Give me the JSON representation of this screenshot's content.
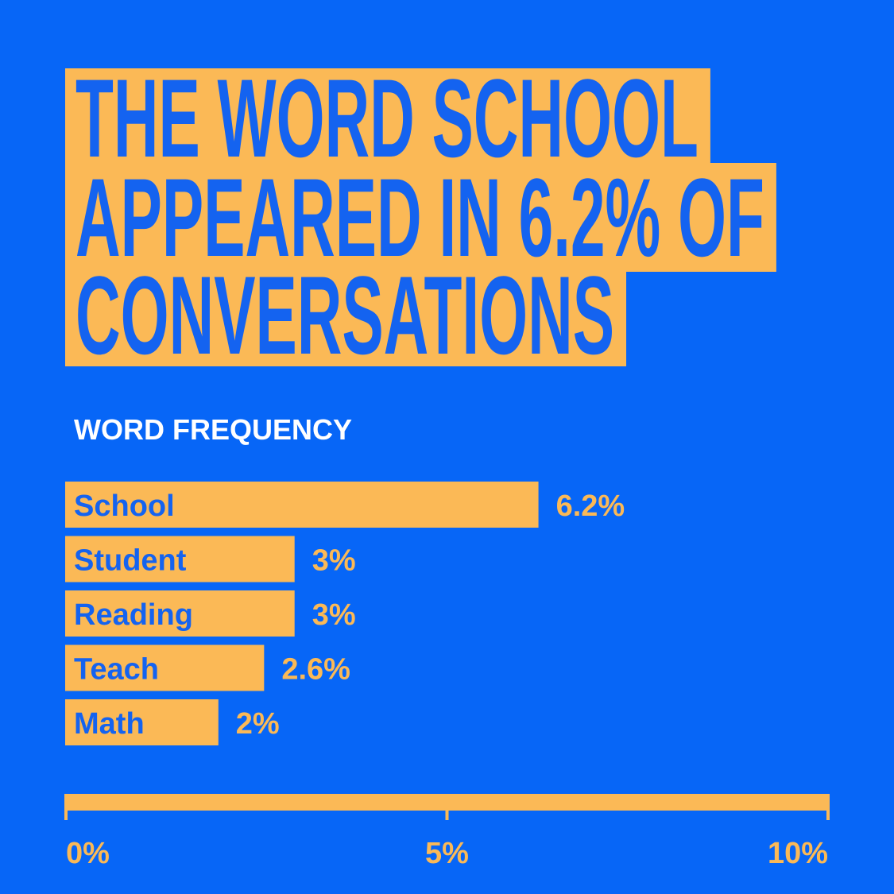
{
  "chart_data": {
    "type": "bar",
    "orientation": "horizontal",
    "title": [
      "THE WORD SCHOOL",
      "APPEARED IN 6.2% OF",
      "CONVERSATIONS"
    ],
    "subtitle": "WORD FREQUENCY",
    "categories": [
      "School",
      "Student",
      "Reading",
      "Teach",
      "Math"
    ],
    "values": [
      6.2,
      3,
      3,
      2.6,
      2
    ],
    "value_labels": [
      "6.2%",
      "3%",
      "3%",
      "2.6%",
      "2%"
    ],
    "color": "#fbb956",
    "xlim": [
      0,
      10
    ],
    "xticks": [
      {
        "value": 0,
        "label": "0%"
      },
      {
        "value": 5,
        "label": "5%"
      },
      {
        "value": 10,
        "label": "10%"
      }
    ]
  }
}
